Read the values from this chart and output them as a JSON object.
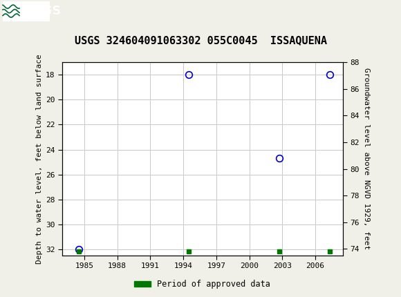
{
  "title": "USGS 324604091063302 055C0045  ISSAQUENA",
  "ylabel_left": "Depth to water level, feet below land surface",
  "ylabel_right": "Groundwater level above NGVD 1929, feet",
  "xlim": [
    1983.0,
    2008.5
  ],
  "ylim_left": [
    32.5,
    17.0
  ],
  "ylim_right": [
    73.5,
    88.0
  ],
  "xticks": [
    1985,
    1988,
    1991,
    1994,
    1997,
    2000,
    2003,
    2006
  ],
  "yticks_left": [
    18,
    20,
    22,
    24,
    26,
    28,
    30,
    32
  ],
  "yticks_right": [
    74,
    76,
    78,
    80,
    82,
    84,
    86,
    88
  ],
  "data_x": [
    1984.5,
    1994.5,
    2002.7,
    2007.3
  ],
  "data_y": [
    32.0,
    18.0,
    24.7,
    18.0
  ],
  "green_x": [
    1984.5,
    1994.5,
    2002.7,
    2007.3
  ],
  "green_y": [
    32.2,
    32.2,
    32.2,
    32.2
  ],
  "point_color": "#0000cc",
  "green_color": "#007700",
  "bg_color": "#f0f0e8",
  "plot_bg_color": "#ffffff",
  "grid_color": "#c8c8c8",
  "header_bg": "#006633",
  "title_fontsize": 11,
  "axis_label_fontsize": 8,
  "tick_fontsize": 8,
  "legend_label": "Period of approved data"
}
